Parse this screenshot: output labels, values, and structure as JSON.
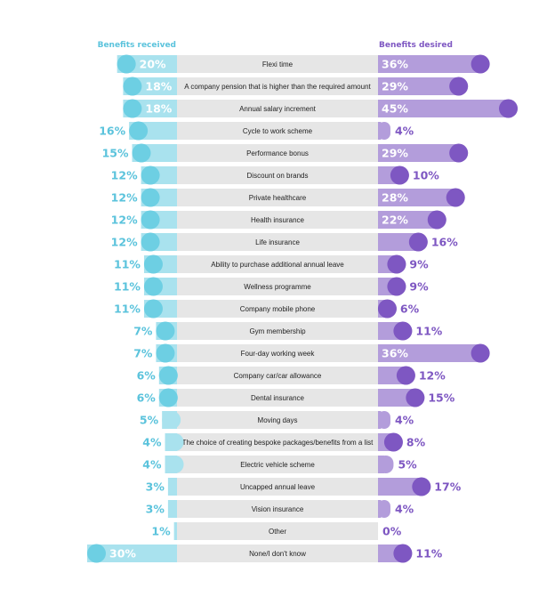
{
  "chart_data": {
    "type": "bar",
    "left_header": "Benefits received",
    "right_header": "Benefits desired",
    "colors": {
      "received": "#6dcfe3",
      "received_light": "#a9e2ee",
      "received_text": "#5bc3dc",
      "desired": "#7e57c2",
      "desired_light": "#b39ddb",
      "desired_text": "#7e57c2",
      "label_bg": "#e6e6e6"
    },
    "categories": [
      "Flexi time",
      "A company pension that is higher than the required amount",
      "Annual salary increment",
      "Cycle to work scheme",
      "Performance bonus",
      "Discount on brands",
      "Private healthcare",
      "Health insurance",
      "Life insurance",
      "Ability to purchase additional annual leave",
      "Wellness programme",
      "Company mobile phone",
      "Gym membership",
      "Four-day working week",
      "Company car/car allowance",
      "Dental insurance",
      "Moving days",
      "The choice of creating bespoke packages/benefits from a list",
      "Electric vehicle scheme",
      "Uncapped annual leave",
      "Vision insurance",
      "Other",
      "None/I don't know"
    ],
    "series": [
      {
        "name": "Benefits received",
        "values": [
          20,
          18,
          18,
          16,
          15,
          12,
          12,
          12,
          12,
          11,
          11,
          11,
          7,
          7,
          6,
          6,
          5,
          4,
          4,
          3,
          3,
          1,
          30
        ],
        "labels": [
          "20%",
          "18%",
          "18%",
          "16%",
          "15%",
          "12%",
          "12%",
          "12%",
          "12%",
          "11%",
          "11%",
          "11%",
          "7%",
          "7%",
          "6%",
          "6%",
          "5%",
          "4%",
          "4%",
          "3%",
          "3%",
          "1%",
          "30%"
        ]
      },
      {
        "name": "Benefits desired",
        "values": [
          36,
          29,
          45,
          4,
          29,
          10,
          28,
          22,
          16,
          9,
          9,
          6,
          11,
          36,
          12,
          15,
          4,
          8,
          5,
          17,
          4,
          0,
          11
        ],
        "labels": [
          "36%",
          "29%",
          "45%",
          "4%",
          "29%",
          "10%",
          "28%",
          "22%",
          "16%",
          "9%",
          "9%",
          "6%",
          "11%",
          "36%",
          "12%",
          "15%",
          "4%",
          "8%",
          "5%",
          "17%",
          "4%",
          "0%",
          "11%"
        ]
      }
    ]
  }
}
